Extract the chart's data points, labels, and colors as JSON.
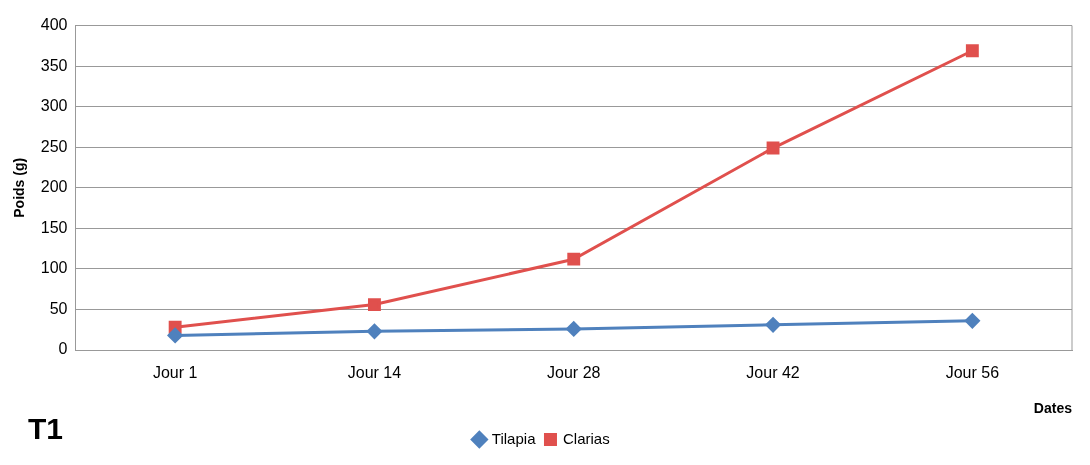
{
  "chart_data": {
    "type": "line",
    "xlabel": "Dates",
    "ylabel": "Poids (g)",
    "annotations": [
      "T1"
    ],
    "categories": [
      "Jour 1",
      "Jour 14",
      "Jour 28",
      "Jour 42",
      "Jour 56"
    ],
    "series": [
      {
        "name": "Tilapia",
        "color": "#4f81bd",
        "values": [
          18,
          23,
          26,
          31,
          36
        ],
        "marker": "diamond"
      },
      {
        "name": "Clarias",
        "color": "#e0504d",
        "values": [
          28,
          56,
          112,
          249,
          369
        ],
        "marker": "square"
      }
    ],
    "ylim": [
      0,
      400
    ],
    "yticks": [
      0,
      50,
      100,
      150,
      200,
      250,
      300,
      350,
      400
    ],
    "grid": "y",
    "legend": "bottom",
    "line_style": "solid"
  }
}
